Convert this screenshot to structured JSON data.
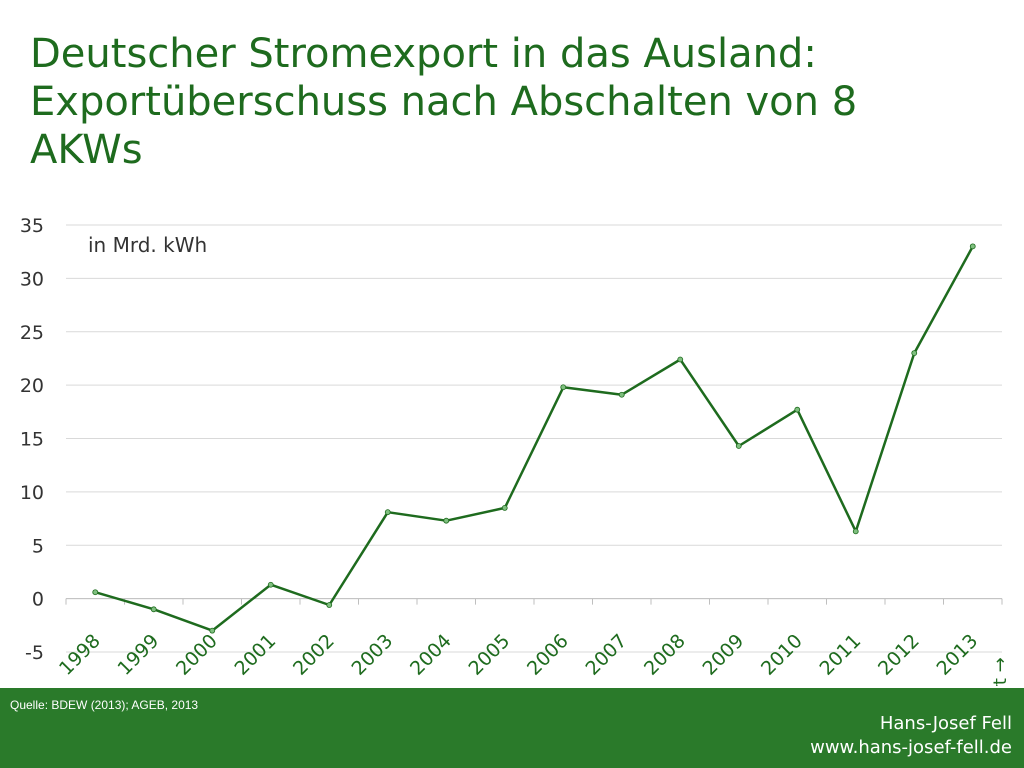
{
  "title_lines": [
    "Deutscher Stromexport in das Ausland:",
    "Exportüberschuss nach Abschalten von 8",
    "AKWs"
  ],
  "footer": {
    "source": "Quelle: BDEW (2013); AGEB, 2013",
    "author": "Hans-Josef Fell",
    "website": "www.hans-josef-fell.de"
  },
  "colors": {
    "title": "#1e6b1e",
    "line": "#1e6b1e",
    "grid": "#d9d9d9",
    "footer_bg": "#2a7a2a"
  },
  "chart_data": {
    "type": "line",
    "title": "",
    "unit_label": "in Mrd. kWh",
    "side_label": "Export →",
    "xlabel": "",
    "ylabel": "",
    "ylim": [
      -5,
      35
    ],
    "yticks": [
      35,
      30,
      25,
      20,
      15,
      10,
      5,
      0,
      -5
    ],
    "grid": true,
    "x": [
      "1998",
      "1999",
      "2000",
      "2001",
      "2002",
      "2003",
      "2004",
      "2005",
      "2006",
      "2007",
      "2008",
      "2009",
      "2010",
      "2011",
      "2012",
      "2013"
    ],
    "series": [
      {
        "values": [
          0.6,
          -1.0,
          -3.0,
          1.3,
          -0.6,
          8.1,
          7.3,
          8.5,
          19.8,
          19.1,
          22.4,
          14.3,
          17.7,
          6.3,
          23.0,
          33.0
        ]
      }
    ]
  }
}
